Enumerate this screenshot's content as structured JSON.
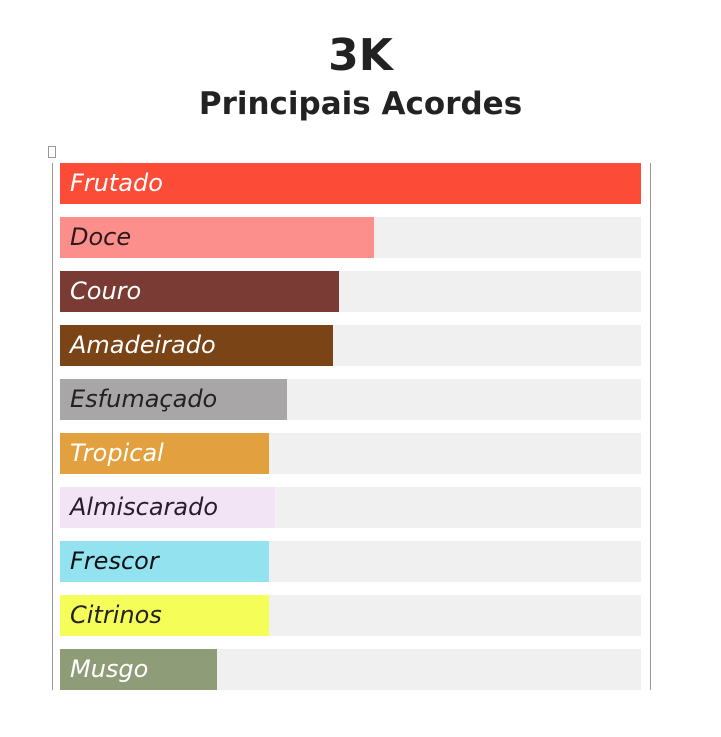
{
  "chart_data": {
    "type": "bar",
    "orientation": "horizontal",
    "title": "3K",
    "subtitle": "Principais Acordes",
    "categories": [
      "Frutado",
      "Doce",
      "Couro",
      "Amadeirado",
      "Esfumaçado",
      "Tropical",
      "Almiscarado",
      "Frescor",
      "Citrinos",
      "Musgo"
    ],
    "values": [
      100,
      54,
      48,
      47,
      39,
      36,
      37,
      36,
      36,
      27
    ],
    "xlim": [
      0,
      100
    ],
    "colors": [
      "#fc4b37",
      "#fc8e8b",
      "#7a3b34",
      "#7a4417",
      "#a8a6a7",
      "#e3a03f",
      "#f3e4f5",
      "#92e2f0",
      "#f5fd59",
      "#8e9c77"
    ],
    "label_colors": [
      "#ffffff",
      "#2a1a1a",
      "#ffffff",
      "#ffffff",
      "#222222",
      "#ffffff",
      "#2a1a2a",
      "#111111",
      "#222222",
      "#ffffff"
    ],
    "track_color": "#f0f0f0",
    "grid": false
  }
}
